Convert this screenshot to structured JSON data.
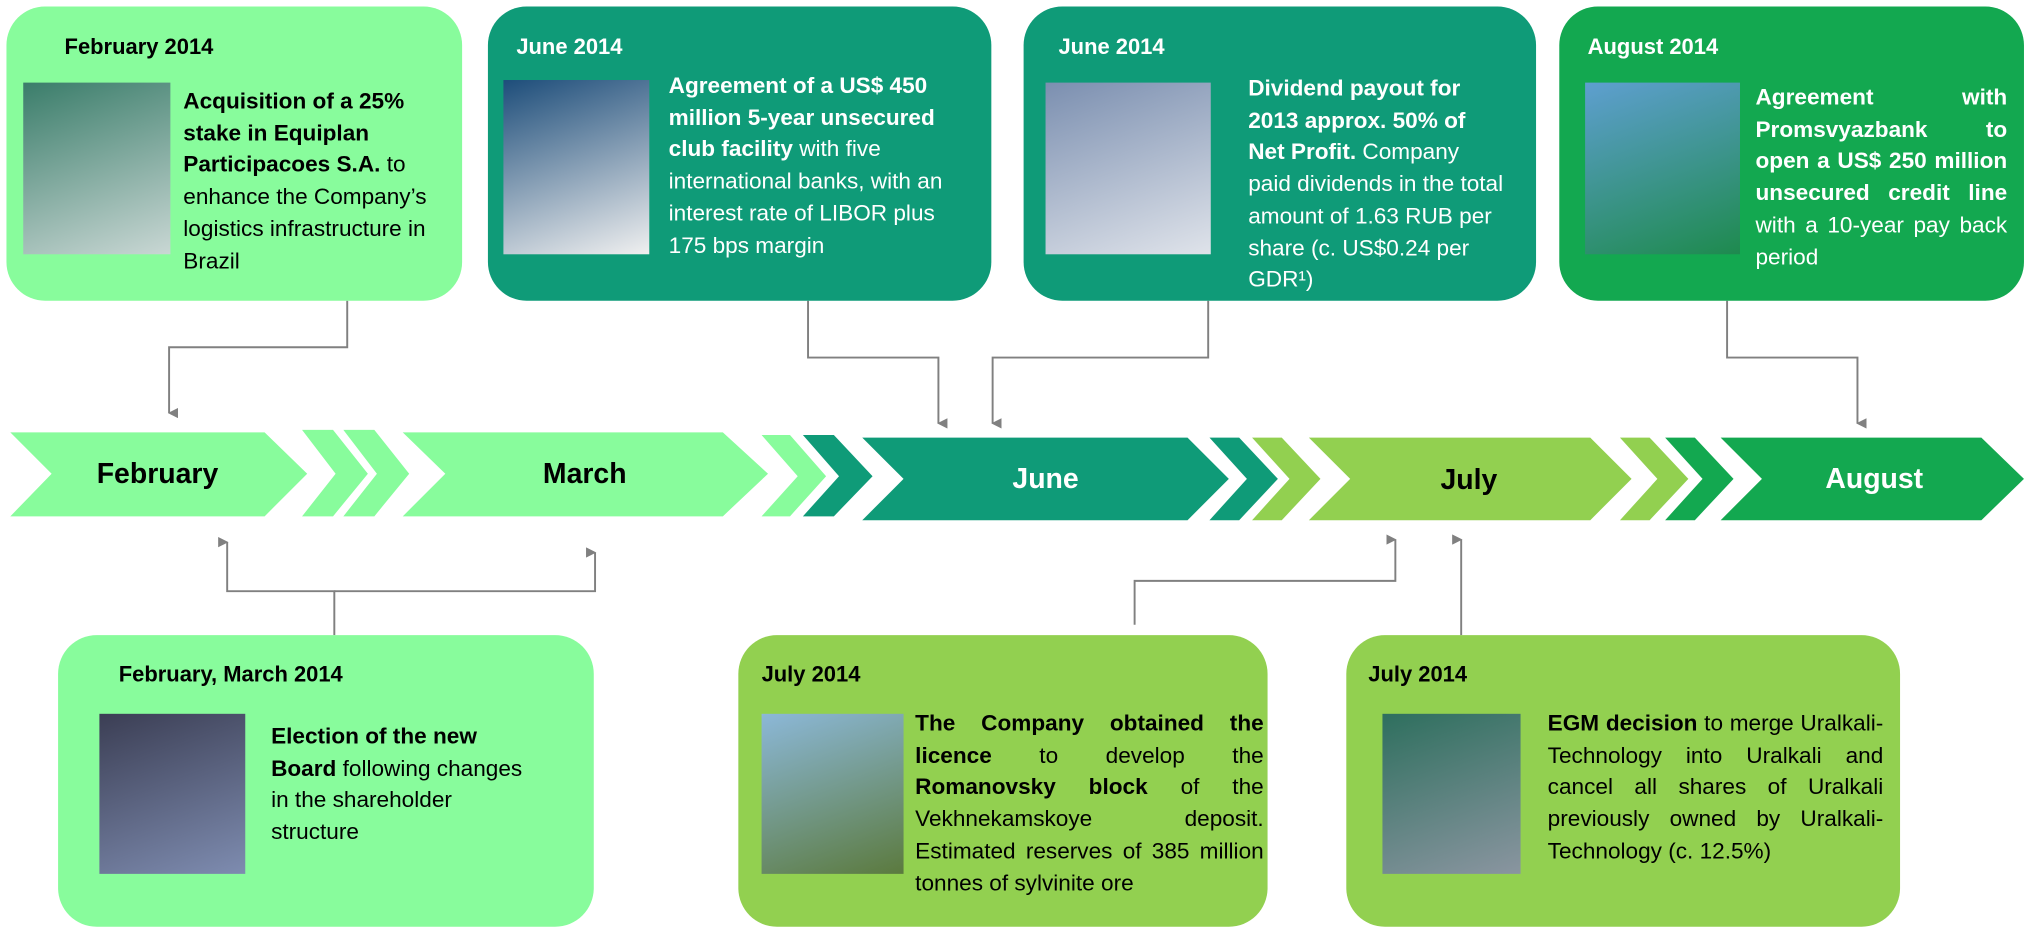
{
  "timeline": {
    "months": [
      "February",
      "March",
      "June",
      "July",
      "August"
    ]
  },
  "events": [
    {
      "date": "February 2014",
      "text": [
        {
          "text": "Acquisition of a 25% stake in Equiplan Participacoes S.A.",
          "bold": true
        },
        {
          "text": " to enhance the Company’s logistics infrastructure in Brazil",
          "bold": false
        }
      ]
    },
    {
      "date": "June 2014",
      "text": [
        {
          "text": "Agreement of a US$ 450 million 5-year unsecured club facility",
          "bold": true
        },
        {
          "text": " with five international banks, with an interest rate of LIBOR plus 175 bps margin",
          "bold": false
        }
      ]
    },
    {
      "date": "June 2014",
      "text": [
        {
          "text": "Dividend payout for 2013 approx. 50% of Net Profit.",
          "bold": true
        },
        {
          "text": " Company paid dividends in the total amount of 1.63 RUB per share (c. US$0.24 per GDR¹)",
          "bold": false
        }
      ]
    },
    {
      "date": "August 2014",
      "text": [
        {
          "text": "Agreement with Promsvyazbank to open a US$ 250 million unsecured credit line",
          "bold": true
        },
        {
          "text": " with a 10-year pay back period",
          "bold": false
        }
      ]
    },
    {
      "date": "February, March 2014",
      "text": [
        {
          "text": "Election of the new Board",
          "bold": true
        },
        {
          "text": " following changes in the shareholder structure",
          "bold": false
        }
      ]
    },
    {
      "date": "July 2014",
      "text": [
        {
          "text": "The Company obtained the licence",
          "bold": true
        },
        {
          "text": " to develop the ",
          "bold": false
        },
        {
          "text": "Romanovsky block",
          "bold": true
        },
        {
          "text": " of the Vekhnekamskoye deposit. Estimated reserves of 385 million tonnes of sylvinite ore",
          "bold": false
        }
      ]
    },
    {
      "date": "July 2014",
      "text": [
        {
          "text": "EGM decision",
          "bold": true
        },
        {
          "text": " to merge Uralkali-Technology into Uralkali and cancel all shares of Uralkali previously owned by Uralkali-Technology (c. 12.5%)",
          "bold": false
        }
      ]
    }
  ]
}
